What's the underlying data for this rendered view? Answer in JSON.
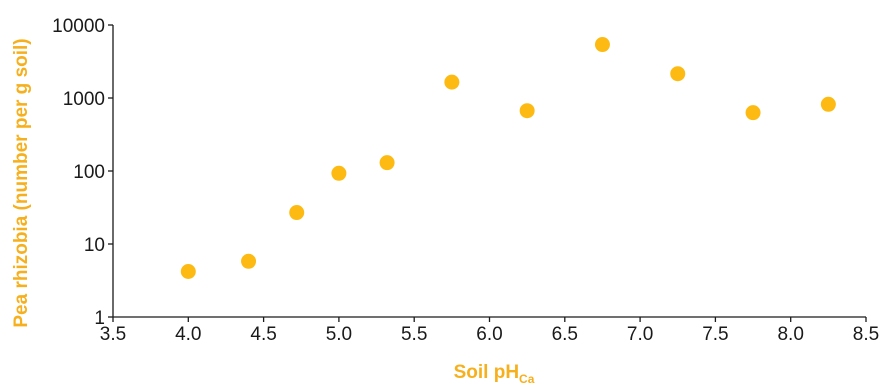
{
  "chart_data": {
    "type": "scatter",
    "title": "",
    "xlabel": "Soil pH",
    "xlabel_subscript": "Ca",
    "ylabel": "Pea rhizobia (number per g soil)",
    "xlim": [
      3.5,
      8.5
    ],
    "ylim": [
      1,
      10000
    ],
    "yscale": "log",
    "grid": false,
    "x_ticks": [
      "3.5",
      "4.0",
      "4.5",
      "5.0",
      "5.5",
      "6.0",
      "6.5",
      "7.0",
      "7.5",
      "8.0",
      "8.5"
    ],
    "y_ticks": [
      "1",
      "10",
      "100",
      "1000",
      "10000"
    ],
    "colors": {
      "points": "#FDBA12",
      "axis_title": "#F7B01D",
      "axis_line": "#1a1a1a"
    },
    "series": [
      {
        "x": [
          4.0,
          4.4,
          4.72,
          5.0,
          5.32,
          5.75,
          6.25,
          6.75,
          7.25,
          7.75,
          8.25
        ],
        "y": [
          4.2,
          5.8,
          27,
          93,
          130,
          1650,
          670,
          5400,
          2150,
          630,
          820
        ]
      }
    ]
  }
}
